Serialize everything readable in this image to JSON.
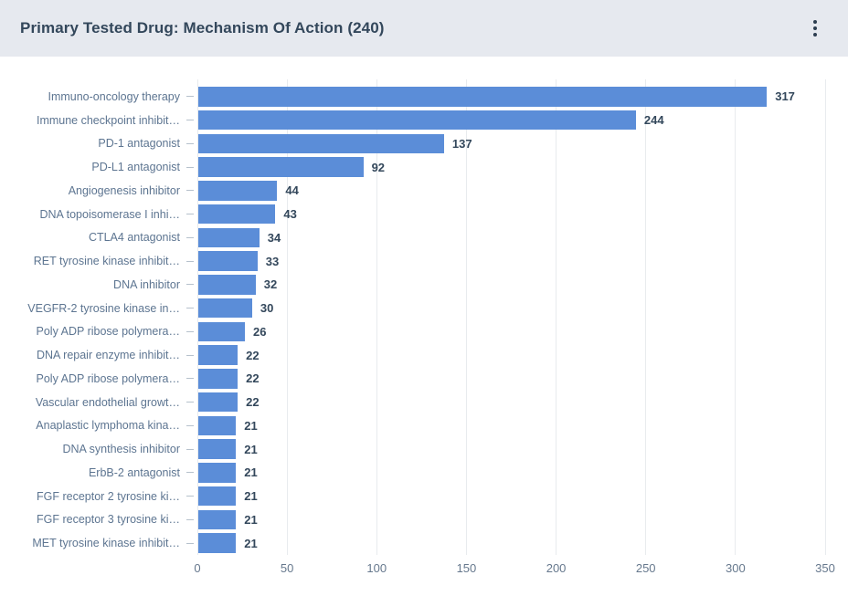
{
  "header": {
    "title": "Primary Tested Drug: Mechanism Of Action (240)"
  },
  "colors": {
    "bar": "#5b8dd8",
    "header_bg": "#e6e9ef",
    "title_text": "#33475b",
    "category_label_text": "#5d7591",
    "value_label_text": "#33475b",
    "axis_label_text": "#66788d",
    "gridline": "#e8ebee"
  },
  "chart_data": {
    "type": "bar",
    "orientation": "horizontal",
    "title": "Primary Tested Drug: Mechanism Of Action (240)",
    "xlabel": "",
    "ylabel": "",
    "xlim": [
      0,
      350
    ],
    "x_ticks": [
      0,
      50,
      100,
      150,
      200,
      250,
      300,
      350
    ],
    "grid": true,
    "data_labels": true,
    "legend_position": "none",
    "categories": [
      "Immuno-oncology therapy",
      "Immune checkpoint inhibit…",
      "PD-1 antagonist",
      "PD-L1 antagonist",
      "Angiogenesis inhibitor",
      "DNA topoisomerase I inhi…",
      "CTLA4 antagonist",
      "RET tyrosine kinase inhibit…",
      "DNA inhibitor",
      "VEGFR-2 tyrosine kinase in…",
      "Poly ADP ribose polymera…",
      "DNA repair enzyme inhibit…",
      "Poly ADP ribose polymera…",
      "Vascular endothelial growt…",
      "Anaplastic lymphoma kina…",
      "DNA synthesis inhibitor",
      "ErbB-2 antagonist",
      "FGF receptor 2 tyrosine ki…",
      "FGF receptor 3 tyrosine ki…",
      "MET tyrosine kinase inhibit…"
    ],
    "values": [
      317,
      244,
      137,
      92,
      44,
      43,
      34,
      33,
      32,
      30,
      26,
      22,
      22,
      22,
      21,
      21,
      21,
      21,
      21,
      21
    ]
  }
}
